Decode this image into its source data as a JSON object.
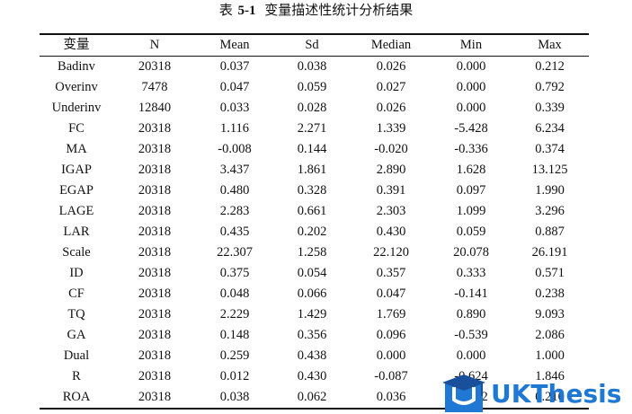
{
  "caption": {
    "prefix": "表",
    "number": "5-1",
    "title": "变量描述性统计分析结果"
  },
  "table": {
    "headers": [
      "变量",
      "N",
      "Mean",
      "Sd",
      "Median",
      "Min",
      "Max"
    ],
    "rows": [
      [
        "Badinv",
        "20318",
        "0.037",
        "0.038",
        "0.026",
        "0.000",
        "0.212"
      ],
      [
        "Overinv",
        "7478",
        "0.047",
        "0.059",
        "0.027",
        "0.000",
        "0.792"
      ],
      [
        "Underinv",
        "12840",
        "0.033",
        "0.028",
        "0.026",
        "0.000",
        "0.339"
      ],
      [
        "FC",
        "20318",
        "1.116",
        "2.271",
        "1.339",
        "-5.428",
        "6.234"
      ],
      [
        "MA",
        "20318",
        "-0.008",
        "0.144",
        "-0.020",
        "-0.336",
        "0.374"
      ],
      [
        "IGAP",
        "20318",
        "3.437",
        "1.861",
        "2.890",
        "1.628",
        "13.125"
      ],
      [
        "EGAP",
        "20318",
        "0.480",
        "0.328",
        "0.391",
        "0.097",
        "1.990"
      ],
      [
        "LAGE",
        "20318",
        "2.283",
        "0.661",
        "2.303",
        "1.099",
        "3.296"
      ],
      [
        "LAR",
        "20318",
        "0.435",
        "0.202",
        "0.430",
        "0.059",
        "0.887"
      ],
      [
        "Scale",
        "20318",
        "22.307",
        "1.258",
        "22.120",
        "20.078",
        "26.191"
      ],
      [
        "ID",
        "20318",
        "0.375",
        "0.054",
        "0.357",
        "0.333",
        "0.571"
      ],
      [
        "CF",
        "20318",
        "0.048",
        "0.066",
        "0.047",
        "-0.141",
        "0.238"
      ],
      [
        "TQ",
        "20318",
        "2.229",
        "1.429",
        "1.769",
        "0.890",
        "9.093"
      ],
      [
        "GA",
        "20318",
        "0.148",
        "0.356",
        "0.096",
        "-0.539",
        "2.086"
      ],
      [
        "Dual",
        "20318",
        "0.259",
        "0.438",
        "0.000",
        "0.000",
        "1.000"
      ],
      [
        "R",
        "20318",
        "0.012",
        "0.430",
        "-0.087",
        "-0.624",
        "1.846"
      ],
      [
        "ROA",
        "20318",
        "0.038",
        "0.062",
        "0.036",
        "-0.232",
        "0.210"
      ]
    ]
  },
  "watermark": {
    "text": "UKThesis",
    "icon": "graduation-cap-icon",
    "color": "#1e78d4",
    "dark_color": "#1a4f9c"
  }
}
